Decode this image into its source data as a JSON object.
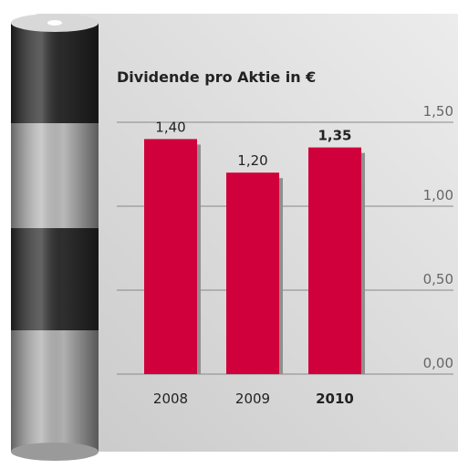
{
  "chart_data": {
    "type": "bar",
    "title": "Dividende pro Aktie in €",
    "categories": [
      "2008",
      "2009",
      "2010"
    ],
    "values": [
      1.4,
      1.2,
      1.35
    ],
    "value_labels": [
      "1,40",
      "1,20",
      "1,35"
    ],
    "color": "#d0003c",
    "emphasis": "last",
    "ylim": [
      0,
      1.5
    ],
    "yticks": [
      {
        "value": 0,
        "label": "0,00"
      },
      {
        "value": 0.5,
        "label": "0,50"
      },
      {
        "value": 1,
        "label": "1,00"
      },
      {
        "value": 1.5,
        "label": "1,50"
      }
    ],
    "grid": true
  }
}
